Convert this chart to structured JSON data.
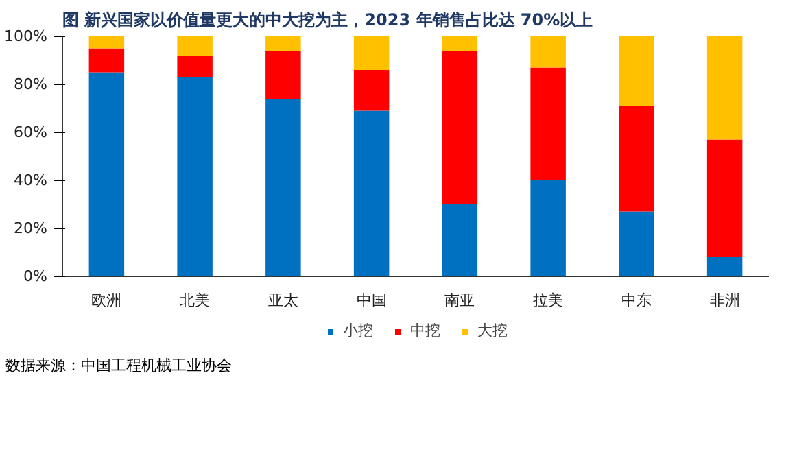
{
  "chart_data": {
    "type": "bar",
    "title": "图   新兴国家以价值量更大的中大挖为主，2023 年销售占比达 70%以上",
    "categories": [
      "欧洲",
      "北美",
      "亚太",
      "中国",
      "南亚",
      "拉美",
      "中东",
      "非洲"
    ],
    "stacked": true,
    "series": [
      {
        "name": "小挖",
        "color": "#0070c0",
        "values": [
          85,
          83,
          74,
          69,
          30,
          40,
          27,
          8
        ]
      },
      {
        "name": "中挖",
        "color": "#ff0000",
        "values": [
          10,
          9,
          20,
          17,
          64,
          47,
          44,
          49
        ]
      },
      {
        "name": "大挖",
        "color": "#ffc000",
        "values": [
          5,
          8,
          6,
          14,
          6,
          13,
          29,
          43
        ]
      }
    ],
    "ylim": [
      0,
      100
    ],
    "yticks": [
      {
        "value": 0,
        "label": "0%"
      },
      {
        "value": 20,
        "label": "20%"
      },
      {
        "value": 40,
        "label": "40%"
      },
      {
        "value": 60,
        "label": "60%"
      },
      {
        "value": 80,
        "label": "80%"
      },
      {
        "value": 100,
        "label": "100%"
      }
    ],
    "grid": false,
    "legend": "bottom",
    "annotations": [
      "数据来源：中国工程机械工业协会"
    ]
  }
}
